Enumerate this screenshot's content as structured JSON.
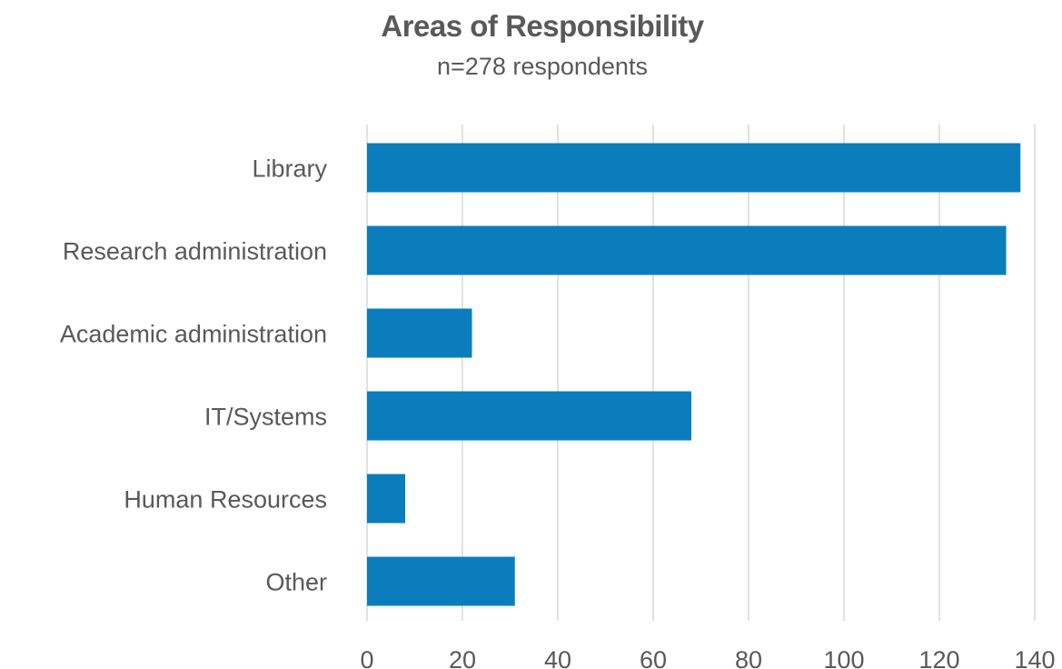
{
  "chart_data": {
    "type": "bar",
    "orientation": "horizontal",
    "title": "Areas of Responsibility",
    "subtitle": "n=278 respondents",
    "categories": [
      "Library",
      "Research administration",
      "Academic administration",
      "IT/Systems",
      "Human Resources",
      "Other"
    ],
    "values": [
      137,
      134,
      22,
      68,
      8,
      31
    ],
    "xlim": [
      0,
      140
    ],
    "xticks": [
      0,
      20,
      40,
      60,
      80,
      100,
      120,
      140
    ],
    "xlabel": "",
    "ylabel": "",
    "grid": "vertical",
    "legend": "none",
    "bar_color": "#0b7dbd",
    "grid_color": "#d9d9d9",
    "text_color": "#595959"
  }
}
